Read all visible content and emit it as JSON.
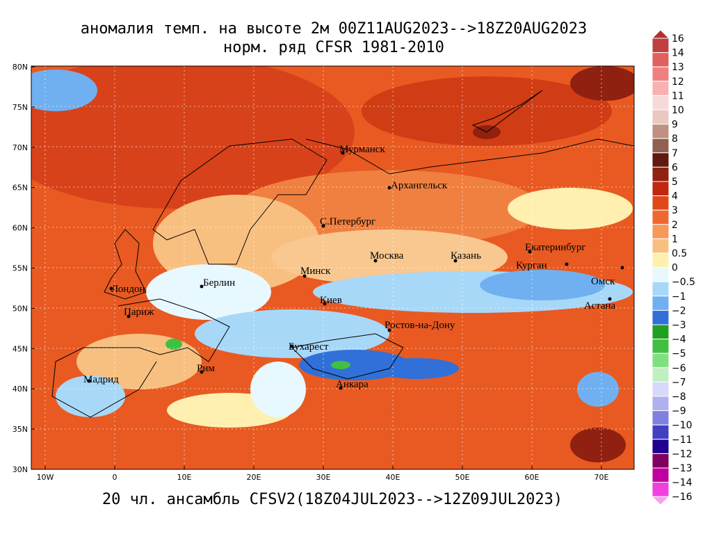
{
  "title": [
    "аномалия темп. на высоте 2м 00Z11AUG2023-->18Z20AUG2023",
    "норм. ряд CFSR 1981-2010"
  ],
  "footer": "20 чл. ансамбль CFSV2(18Z04JUL2023-->12Z09JUL2023)",
  "lat_labels": [
    "80N",
    "75N",
    "70N",
    "65N",
    "60N",
    "55N",
    "50N",
    "45N",
    "40N",
    "35N",
    "30N"
  ],
  "lon_labels": [
    "10W",
    "0",
    "10E",
    "20E",
    "30E",
    "40E",
    "50E",
    "60E",
    "70E"
  ],
  "cities": [
    "Мурманск",
    "Архангельск",
    "С.Петербург",
    "Москва",
    "Казань",
    "Екатеринбург",
    "Курган",
    "Омск",
    "Астана",
    "Минск",
    "Берлин",
    "Лондон",
    "Париж",
    "Киев",
    "Ростов-на-Дону",
    "Бухарест",
    "Рим",
    "Мадрид",
    "Анкара"
  ],
  "colorbar": [
    "16",
    "14",
    "13",
    "12",
    "11",
    "10",
    "9",
    "8",
    "7",
    "6",
    "5",
    "4",
    "3",
    "2",
    "1",
    "0.5",
    "0",
    "−0.5",
    "−1",
    "−2",
    "−3",
    "−4",
    "−5",
    "−6",
    "−7",
    "−8",
    "−9",
    "−10",
    "−11",
    "−12",
    "−13",
    "−14",
    "−16"
  ]
}
